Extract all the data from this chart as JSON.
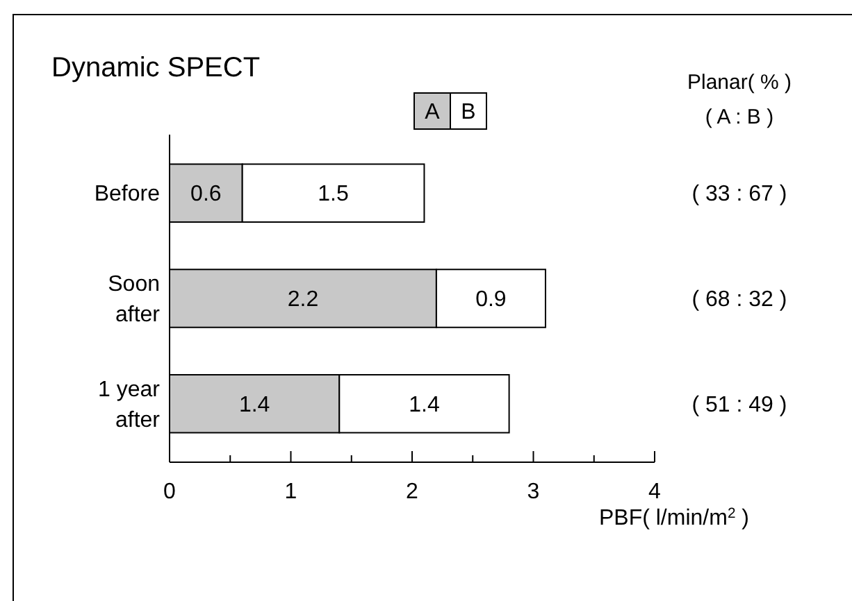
{
  "chart_data": {
    "type": "bar",
    "orientation": "horizontal",
    "stacked": true,
    "title": "Dynamic SPECT",
    "xlabel": "PBF( l/min/m$^{2}$ )",
    "categories": [
      "Before",
      "Soon after",
      "1 year after"
    ],
    "series": [
      {
        "name": "A",
        "color": "#c8c8c8",
        "values": [
          0.6,
          2.2,
          1.4
        ]
      },
      {
        "name": "B",
        "color": "#ffffff",
        "values": [
          1.5,
          0.9,
          1.4
        ]
      }
    ],
    "xlim": [
      0,
      4
    ],
    "xticks": [
      0,
      {
        "value": 0.5,
        "label": null
      },
      1,
      {
        "value": 1.5,
        "label": null
      },
      2,
      {
        "value": 2.5,
        "label": null
      },
      3,
      {
        "value": 3.5,
        "label": null
      },
      4
    ],
    "data_labels": true,
    "legend": "top",
    "grid": false,
    "annotations": [
      "Planar( % )",
      "( A : B )",
      "( 33 : 67 )",
      "( 68 : 32 )",
      "( 51 : 49 )"
    ]
  }
}
